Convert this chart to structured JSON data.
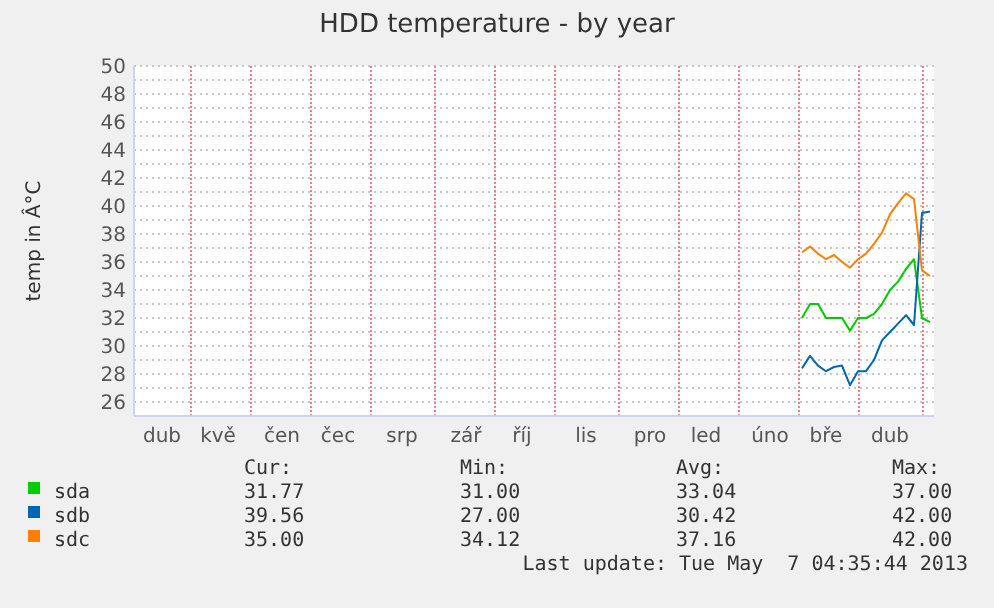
{
  "chart_data": {
    "type": "line",
    "title": "HDD temperature - by year",
    "ylabel": "temp in Â°C",
    "categories": [
      null,
      null,
      null,
      "dub",
      null,
      null,
      null,
      null,
      null,
      null,
      "kvě",
      null,
      null,
      null,
      null,
      null,
      null,
      null,
      "čen",
      null,
      null,
      null,
      null,
      null,
      null,
      "čec",
      null,
      null,
      null,
      null,
      null,
      null,
      null,
      "srp",
      null,
      null,
      null,
      null,
      null,
      null,
      null,
      "zář",
      null,
      null,
      null,
      null,
      null,
      null,
      "říj",
      null,
      null,
      null,
      null,
      null,
      null,
      null,
      "lis",
      null,
      null,
      null,
      null,
      null,
      null,
      null,
      "pro",
      null,
      null,
      null,
      null,
      null,
      null,
      "led",
      null,
      null,
      null,
      null,
      null,
      null,
      null,
      "úno",
      null,
      null,
      null,
      null,
      null,
      null,
      "bře",
      null,
      null,
      null,
      null,
      null,
      null,
      null,
      "dub",
      null,
      null,
      null,
      null,
      null
    ],
    "ylim": [
      25,
      50
    ],
    "yticks": [
      26,
      {
        "value": 27,
        "label": null
      },
      28,
      {
        "value": 29,
        "label": null
      },
      30,
      {
        "value": 31,
        "label": null
      },
      32,
      {
        "value": 33,
        "label": null
      },
      34,
      {
        "value": 35,
        "label": null
      },
      36,
      {
        "value": 37,
        "label": null
      },
      38,
      {
        "value": 39,
        "label": null
      },
      40,
      {
        "value": 41,
        "label": null
      },
      42,
      {
        "value": 43,
        "label": null
      },
      44,
      {
        "value": 45,
        "label": null
      },
      46,
      {
        "value": 47,
        "label": null
      },
      48,
      {
        "value": 49,
        "label": null
      },
      50
    ],
    "grid": true,
    "legend": "bottom",
    "marker": "none",
    "line_style": "solid",
    "series": [
      {
        "name": "sda",
        "color": "#00cc00",
        "values": [
          null,
          null,
          null,
          null,
          null,
          null,
          null,
          null,
          null,
          null,
          null,
          null,
          null,
          null,
          null,
          null,
          null,
          null,
          null,
          null,
          null,
          null,
          null,
          null,
          null,
          null,
          null,
          null,
          null,
          null,
          null,
          null,
          null,
          null,
          null,
          null,
          null,
          null,
          null,
          null,
          null,
          null,
          null,
          null,
          null,
          null,
          null,
          null,
          null,
          null,
          null,
          null,
          null,
          null,
          null,
          null,
          null,
          null,
          null,
          null,
          null,
          null,
          null,
          null,
          null,
          null,
          null,
          null,
          null,
          null,
          null,
          null,
          null,
          null,
          null,
          null,
          null,
          null,
          null,
          null,
          null,
          null,
          null,
          32.0,
          33.0,
          33.0,
          32.0,
          32.0,
          32.0,
          31.1,
          32.0,
          32.0,
          32.3,
          33.0,
          34.0,
          34.6,
          35.5,
          36.2,
          32.0,
          31.7
        ]
      },
      {
        "name": "sdb",
        "color": "#0066b3",
        "values": [
          null,
          null,
          null,
          null,
          null,
          null,
          null,
          null,
          null,
          null,
          null,
          null,
          null,
          null,
          null,
          null,
          null,
          null,
          null,
          null,
          null,
          null,
          null,
          null,
          null,
          null,
          null,
          null,
          null,
          null,
          null,
          null,
          null,
          null,
          null,
          null,
          null,
          null,
          null,
          null,
          null,
          null,
          null,
          null,
          null,
          null,
          null,
          null,
          null,
          null,
          null,
          null,
          null,
          null,
          null,
          null,
          null,
          null,
          null,
          null,
          null,
          null,
          null,
          null,
          null,
          null,
          null,
          null,
          null,
          null,
          null,
          null,
          null,
          null,
          null,
          null,
          null,
          null,
          null,
          null,
          null,
          null,
          null,
          28.4,
          29.3,
          28.6,
          28.2,
          28.5,
          28.6,
          27.2,
          28.2,
          28.2,
          29.0,
          30.4,
          31.0,
          31.6,
          32.2,
          31.5,
          39.5,
          39.6
        ]
      },
      {
        "name": "sdc",
        "color": "#ff8000",
        "values": [
          null,
          null,
          null,
          null,
          null,
          null,
          null,
          null,
          null,
          null,
          null,
          null,
          null,
          null,
          null,
          null,
          null,
          null,
          null,
          null,
          null,
          null,
          null,
          null,
          null,
          null,
          null,
          null,
          null,
          null,
          null,
          null,
          null,
          null,
          null,
          null,
          null,
          null,
          null,
          null,
          null,
          null,
          null,
          null,
          null,
          null,
          null,
          null,
          null,
          null,
          null,
          null,
          null,
          null,
          null,
          null,
          null,
          null,
          null,
          null,
          null,
          null,
          null,
          null,
          null,
          null,
          null,
          null,
          null,
          null,
          null,
          null,
          null,
          null,
          null,
          null,
          null,
          null,
          null,
          null,
          null,
          null,
          null,
          36.7,
          37.1,
          36.6,
          36.2,
          36.5,
          36.0,
          35.6,
          36.2,
          36.6,
          37.3,
          38.1,
          39.4,
          40.2,
          40.9,
          40.5,
          35.4,
          35.0
        ]
      }
    ],
    "annotations": [
      "Cur:",
      "Min:",
      "Avg:",
      "Max:",
      "31.77",
      "31.00",
      "33.04",
      "37.00",
      "39.56",
      "27.00",
      "30.42",
      "42.00",
      "35.00",
      "34.12",
      "37.16",
      "42.00",
      "Last update: Tue May  7 04:35:44 2013"
    ]
  }
}
